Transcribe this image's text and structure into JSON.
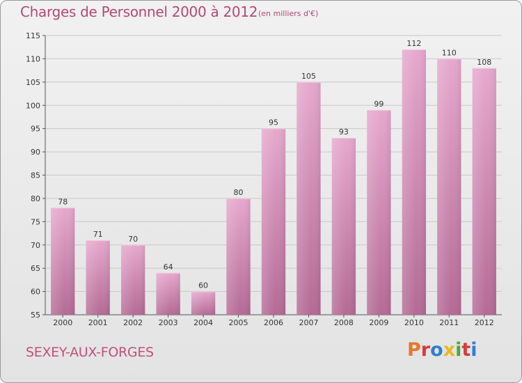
{
  "header": {
    "title": "Charges de Personnel 2000 à 2012",
    "unit": "(en milliers d'€)"
  },
  "footer": {
    "city": "SEXEY-AUX-FORGES",
    "logo": "Proxiti",
    "logo_colors": [
      "#e8762b",
      "#d83a3a",
      "#2f7fd1",
      "#e8b91d",
      "#4aa83c",
      "#d83a3a",
      "#2f7fd1"
    ]
  },
  "chart_data": {
    "type": "bar",
    "categories": [
      "2000",
      "2001",
      "2002",
      "2003",
      "2004",
      "2005",
      "2006",
      "2007",
      "2008",
      "2009",
      "2010",
      "2011",
      "2012"
    ],
    "values": [
      78,
      71,
      70,
      64,
      60,
      80,
      95,
      105,
      93,
      99,
      112,
      110,
      108
    ],
    "ylim": [
      55,
      115
    ],
    "yticks": [
      55,
      60,
      65,
      70,
      75,
      80,
      85,
      90,
      95,
      100,
      105,
      110,
      115
    ],
    "grid": true,
    "bar_color": "#d98ab3",
    "data_labels": true
  }
}
